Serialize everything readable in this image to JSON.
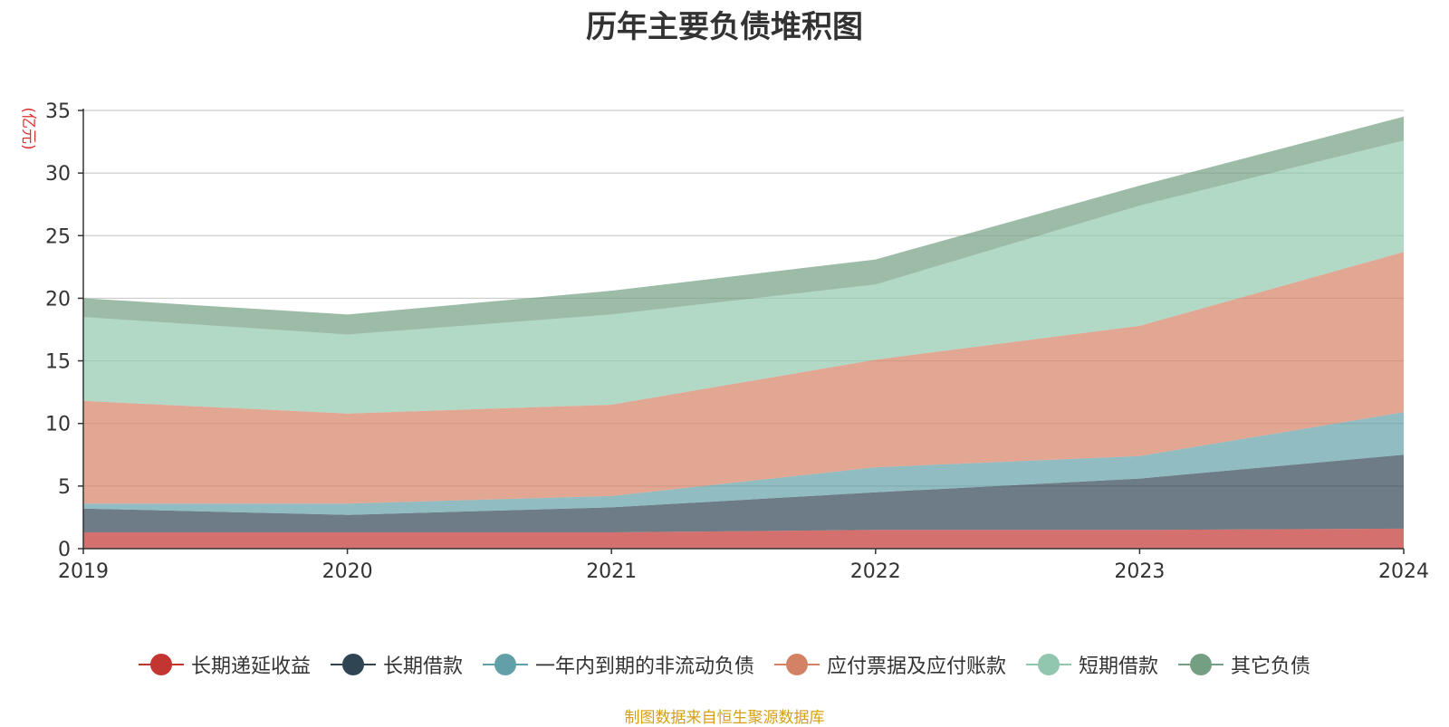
{
  "chart_data": {
    "type": "area",
    "stacked": true,
    "title": "历年主要负债堆积图",
    "y_unit": "(亿元)",
    "categories": [
      "2019",
      "2020",
      "2021",
      "2022",
      "2023",
      "2024"
    ],
    "ylim": [
      0,
      35
    ],
    "yticks": [
      0,
      5,
      10,
      15,
      20,
      25,
      30,
      35
    ],
    "grid": true,
    "legend_position": "bottom",
    "series": [
      {
        "name": "长期递延收益",
        "color": "#c23531",
        "values": [
          1.3,
          1.3,
          1.3,
          1.5,
          1.5,
          1.6
        ]
      },
      {
        "name": "长期借款",
        "color": "#2f4554",
        "values": [
          1.9,
          1.4,
          2.0,
          3.0,
          4.1,
          5.9
        ]
      },
      {
        "name": "一年内到期的非流动负债",
        "color": "#61a0a8",
        "values": [
          0.4,
          0.9,
          0.9,
          2.0,
          1.8,
          3.4
        ]
      },
      {
        "name": "应付票据及应付账款",
        "color": "#d48265",
        "values": [
          8.2,
          7.2,
          7.3,
          8.6,
          10.4,
          12.8
        ]
      },
      {
        "name": "短期借款",
        "color": "#91c7ae",
        "values": [
          6.7,
          6.3,
          7.2,
          6.0,
          9.6,
          8.9
        ]
      },
      {
        "name": "其它负债",
        "color": "#749f83",
        "values": [
          1.5,
          1.6,
          1.9,
          2.0,
          1.6,
          1.9
        ]
      }
    ]
  },
  "source_note": "制图数据来自恒生聚源数据库"
}
